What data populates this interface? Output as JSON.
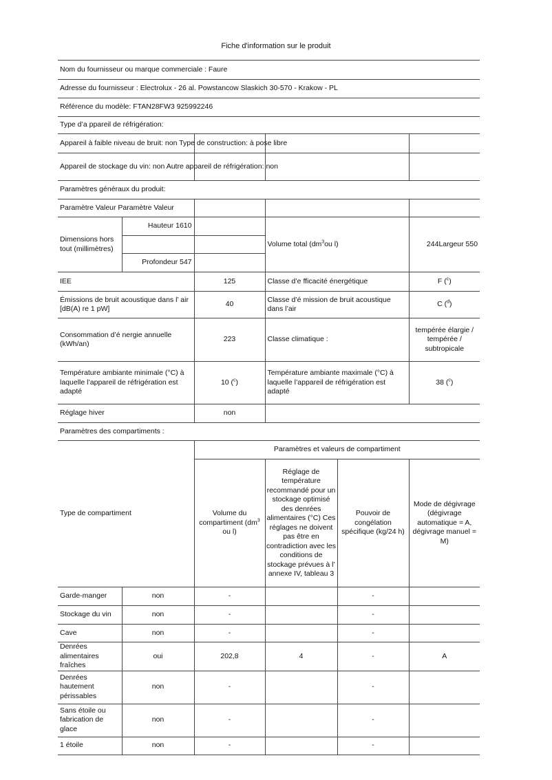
{
  "title": "Fiche d'information sur le produit",
  "supplier": "Nom du fournisseur ou marque commerciale : Faure",
  "address": "Adresse du fournisseur : Electrolux - 26 al. Powstancow Slaskich 30-570 - Krakow - PL",
  "model": "Référence du modèle: FTAN28FW3 925992246",
  "type_heading": "Type d’a ppareil de réfrigération:",
  "low_noise": "Appareil à faible niveau de bruit: non Type de construction: à pose libre",
  "wine": "Appareil de stockage du vin: non Autre appareil de réfrigération: non",
  "general_heading": "Paramètres généraux du produit:",
  "param_header": "Paramètre Valeur Paramètre Valeur",
  "dimensions": {
    "label": "Dimensions hors tout (millimètres)",
    "height": "Hauteur 1610",
    "depth": "Profondeur 547",
    "volume_label": "Volume total (dm",
    "volume_sup": "3",
    "volume_label_end": "ou l)",
    "volume_value": "244Largeur 550"
  },
  "iee": {
    "label": "IEE",
    "value": "125",
    "class_label": "Classe d’e fficacité énergétique",
    "class_value": "F (",
    "class_note": "c",
    "close": ")"
  },
  "noise": {
    "label": "Émissions de bruit acoustique dans l’ air [dB(A) re 1 pW]",
    "value": "40",
    "class_label": "Classe d’é mission de bruit acoustique dans l’air",
    "class_value": "C (",
    "class_note": "d",
    "close": ")"
  },
  "energy": {
    "label": "Consommation d’é nergie annuelle (kWh/an)",
    "value": "223",
    "climate_label": "Classe climatique :",
    "climate_value": "tempérée élargie / tempérée / subtropicale"
  },
  "temp": {
    "min_label": "Température ambiante minimale (°C) à laquelle l’appareil de réfrigération est adapté",
    "min_value": "10 (",
    "min_note": "c",
    "max_label": "Température ambiante maximale (°C) à laquelle l’appareil de réfrigération est adapté",
    "max_value": "38 (",
    "max_note": "c",
    "close": ")"
  },
  "winter": {
    "label": "Réglage hiver",
    "value": "non"
  },
  "compartments_heading": "Paramètres des compartiments :",
  "comp_header": {
    "type": "Type de compartiment",
    "group": "Paramètres et valeurs de compartiment",
    "volume": "Volume du compartiment (dm",
    "volume_sup": "3",
    "volume_end": " ou l)",
    "temp": "Réglage de température recommandé pour un stockage optimisé des denrées alimentaires (°C) Ces réglages ne doivent pas être en contradiction avec les conditions de stockage prévues à l’ annexe IV, tableau 3",
    "freeze": "Pouvoir de congélation spécifique (kg/24 h)",
    "defrost": "Mode de dégivrage (dégivrage automatique = A, dégivrage manuel = M)"
  },
  "compartments": [
    {
      "name": "Garde-manger",
      "present": "non",
      "volume": "-",
      "temp": "",
      "freeze": "-",
      "defrost": ""
    },
    {
      "name": "Stockage du vin",
      "present": "non",
      "volume": "-",
      "temp": "",
      "freeze": "-",
      "defrost": ""
    },
    {
      "name": "Cave",
      "present": "non",
      "volume": "-",
      "temp": "",
      "freeze": "-",
      "defrost": ""
    },
    {
      "name": "Denrées alimentaires fraîches",
      "present": "oui",
      "volume": "202,8",
      "temp": "4",
      "freeze": "-",
      "defrost": "A"
    },
    {
      "name": "Denrées hautement périssables",
      "present": "non",
      "volume": "-",
      "temp": "",
      "freeze": "-",
      "defrost": ""
    },
    {
      "name": "Sans étoile ou fabrication de glace",
      "present": "non",
      "volume": "-",
      "temp": "",
      "freeze": "-",
      "defrost": ""
    },
    {
      "name": "1 étoile",
      "present": "non",
      "volume": "-",
      "temp": "",
      "freeze": "-",
      "defrost": ""
    }
  ]
}
